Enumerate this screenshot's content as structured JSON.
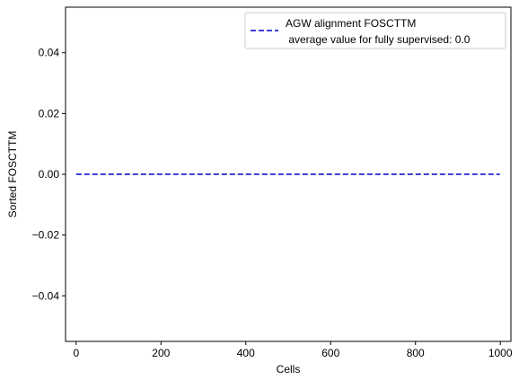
{
  "chart_data": {
    "type": "line",
    "title": "",
    "xlabel": "Cells",
    "ylabel": "Sorted FOSCTTM",
    "xlim": [
      -25,
      1025
    ],
    "ylim": [
      -0.055,
      0.055
    ],
    "xticks": [
      0,
      200,
      400,
      600,
      800,
      1000
    ],
    "xtick_labels": [
      "0",
      "200",
      "400",
      "600",
      "800",
      "1000"
    ],
    "yticks": [
      -0.04,
      -0.02,
      0.0,
      0.02,
      0.04
    ],
    "ytick_labels": [
      "−0.04",
      "−0.02",
      "0.00",
      "0.02",
      "0.04"
    ],
    "grid": false,
    "legend_position": "top-right",
    "series": [
      {
        "name": "AGW alignment FOSCTTM\n average value for fully supervised: 0.0",
        "legend_lines": [
          "AGW alignment FOSCTTM",
          " average value for fully supervised: 0.0"
        ],
        "color": "#0000cc",
        "line_style": "dashed",
        "x": [
          0,
          999
        ],
        "y": [
          0.0,
          0.0
        ]
      }
    ]
  }
}
